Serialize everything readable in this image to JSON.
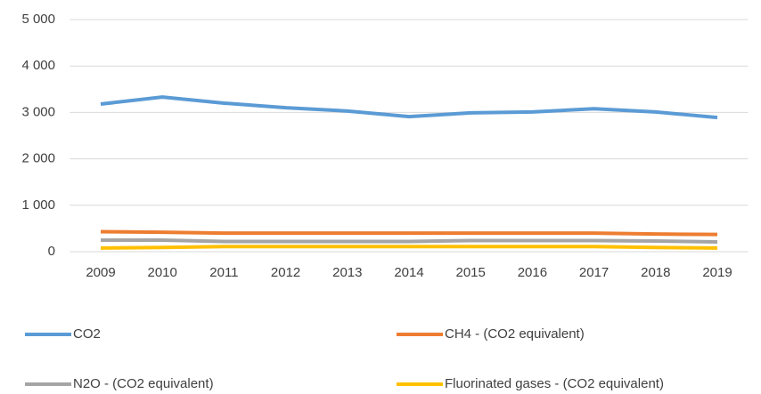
{
  "chart_data": {
    "type": "line",
    "categories": [
      "2009",
      "2010",
      "2011",
      "2012",
      "2013",
      "2014",
      "2015",
      "2016",
      "2017",
      "2018",
      "2019"
    ],
    "series": [
      {
        "name": "CO2",
        "color": "#5b9bd5",
        "values": [
          3180,
          3330,
          3200,
          3100,
          3030,
          2910,
          2990,
          3010,
          3080,
          3010,
          2890
        ]
      },
      {
        "name": "CH4 - (CO2 equivalent)",
        "color": "#ed7d31",
        "values": [
          430,
          420,
          400,
          400,
          400,
          400,
          400,
          400,
          400,
          380,
          370
        ]
      },
      {
        "name": "N2O - (CO2 equivalent)",
        "color": "#a5a5a5",
        "values": [
          250,
          250,
          220,
          220,
          220,
          220,
          240,
          240,
          240,
          230,
          210
        ]
      },
      {
        "name": "Fluorinated gases - (CO2 equivalent)",
        "color": "#ffc000",
        "values": [
          80,
          90,
          110,
          110,
          110,
          110,
          110,
          110,
          110,
          90,
          80
        ]
      }
    ],
    "ylim": [
      0,
      5000
    ],
    "yticks": [
      0,
      {
        "value": 1000,
        "label": "1 000"
      },
      {
        "value": 2000,
        "label": "2 000"
      },
      {
        "value": 3000,
        "label": "3 000"
      },
      {
        "value": 4000,
        "label": "4 000"
      },
      {
        "value": 5000,
        "label": "5 000"
      }
    ],
    "grid": true,
    "legend": "bottom"
  }
}
